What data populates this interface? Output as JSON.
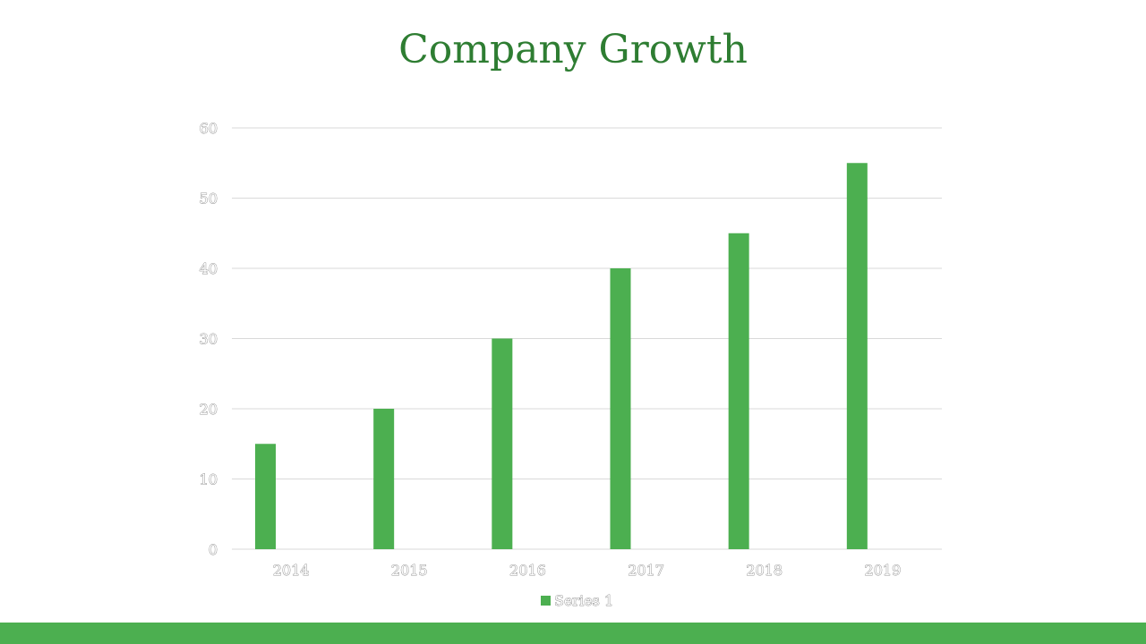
{
  "slide": {
    "title": "Company Growth"
  },
  "colors": {
    "title": "#2e7d32",
    "bar": "#4caf50",
    "footer_bar": "#4caf50",
    "gridline": "#d9d9d9"
  },
  "chart_data": {
    "type": "bar",
    "title": "Company Growth",
    "categories": [
      "2014",
      "2015",
      "2016",
      "2017",
      "2018",
      "2019"
    ],
    "series": [
      {
        "name": "Series 1",
        "values": [
          15,
          20,
          30,
          40,
          45,
          55
        ]
      }
    ],
    "xlabel": "",
    "ylabel": "",
    "ylim": [
      0,
      60
    ],
    "yticks": [
      0,
      10,
      20,
      30,
      40,
      50,
      60
    ],
    "grid": true,
    "legend": "bottom-center"
  }
}
